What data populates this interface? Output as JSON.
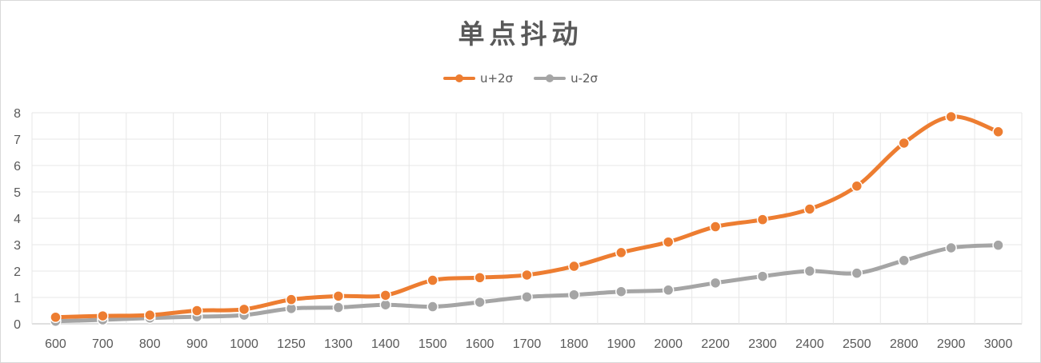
{
  "chart_data": {
    "type": "line",
    "title": "单点抖动",
    "xlabel": "",
    "ylabel": "",
    "categories": [
      "600",
      "700",
      "800",
      "900",
      "1000",
      "1250",
      "1300",
      "1400",
      "1500",
      "1600",
      "1700",
      "1800",
      "1900",
      "2000",
      "2200",
      "2300",
      "2400",
      "2500",
      "2800",
      "2900",
      "3000"
    ],
    "ylim": [
      0,
      8
    ],
    "yticks": [
      0,
      1,
      2,
      3,
      4,
      5,
      6,
      7,
      8
    ],
    "grid": true,
    "legend_position": "top",
    "series": [
      {
        "name": "u+2σ",
        "color": "#ed7d31",
        "values": [
          0.25,
          0.3,
          0.33,
          0.5,
          0.55,
          0.92,
          1.05,
          1.08,
          1.65,
          1.75,
          1.85,
          2.18,
          2.7,
          3.1,
          3.68,
          3.95,
          4.35,
          5.22,
          6.85,
          7.85,
          7.28
        ]
      },
      {
        "name": "u-2σ",
        "color": "#a5a5a5",
        "values": [
          0.1,
          0.15,
          0.22,
          0.27,
          0.33,
          0.58,
          0.62,
          0.72,
          0.65,
          0.82,
          1.02,
          1.1,
          1.22,
          1.28,
          1.55,
          1.8,
          2.0,
          1.92,
          2.4,
          2.88,
          2.98
        ]
      }
    ]
  }
}
